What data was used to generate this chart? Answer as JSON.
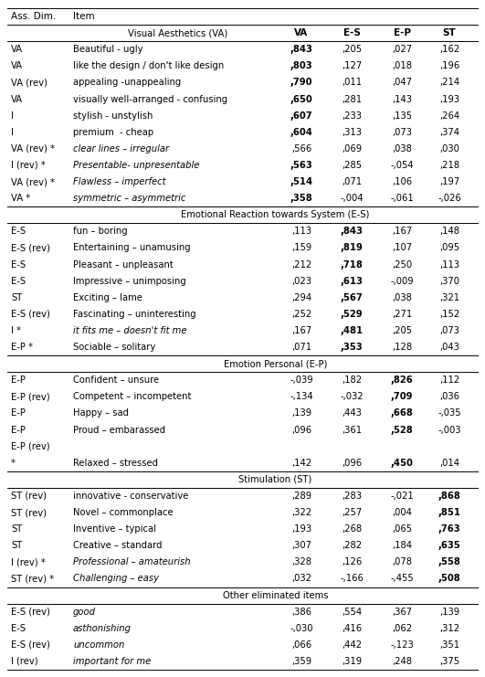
{
  "col_headers_row1": [
    "Ass. Dim.",
    "Item"
  ],
  "col_headers_row2": [
    "",
    "Visual Aesthetics (VA)",
    "VA",
    "E-S",
    "E-P",
    "ST"
  ],
  "sections": [
    {
      "label": "Visual Aesthetics (VA)",
      "show_label_in_header": false,
      "rows": [
        {
          "dim": "VA",
          "item": "Beautiful - ugly",
          "vals": [
            ",843",
            ",205",
            ",027",
            ",162"
          ],
          "bold_col": 0,
          "italic": false
        },
        {
          "dim": "VA",
          "item": "like the design / don't like design",
          "vals": [
            ",803",
            ",127",
            ",018",
            ",196"
          ],
          "bold_col": 0,
          "italic": false
        },
        {
          "dim": "VA (rev)",
          "item": "appealing -unappealing",
          "vals": [
            ",790",
            ",011",
            ",047",
            ",214"
          ],
          "bold_col": 0,
          "italic": false
        },
        {
          "dim": "VA",
          "item": "visually well-arranged - confusing",
          "vals": [
            ",650",
            ",281",
            ",143",
            ",193"
          ],
          "bold_col": 0,
          "italic": false
        },
        {
          "dim": "I",
          "item": "stylish - unstylish",
          "vals": [
            ",607",
            ",233",
            ",135",
            ",264"
          ],
          "bold_col": 0,
          "italic": false
        },
        {
          "dim": "I",
          "item": "premium  - cheap",
          "vals": [
            ",604",
            ",313",
            ",073",
            ",374"
          ],
          "bold_col": 0,
          "italic": false
        },
        {
          "dim": "VA (rev) *",
          "item": "clear lines – irregular",
          "vals": [
            ",566",
            ",069",
            ",038",
            ",030"
          ],
          "bold_col": -1,
          "italic": true
        },
        {
          "dim": "I (rev) *",
          "item": "Presentable- unpresentable",
          "vals": [
            ",563",
            ",285",
            "-,054",
            ",218"
          ],
          "bold_col": 0,
          "italic": true
        },
        {
          "dim": "VA (rev) *",
          "item": "Flawless – imperfect",
          "vals": [
            ",514",
            ",071",
            ",106",
            ",197"
          ],
          "bold_col": 0,
          "italic": true
        },
        {
          "dim": "VA *",
          "item": "symmetric – asymmetric",
          "vals": [
            ",358",
            "-,004",
            "-,061",
            "-,026"
          ],
          "bold_col": 0,
          "italic": true
        }
      ]
    },
    {
      "label": "Emotional Reaction towards System (E-S)",
      "rows": [
        {
          "dim": "E-S",
          "item": "fun – boring",
          "vals": [
            ",113",
            ",843",
            ",167",
            ",148"
          ],
          "bold_col": 1,
          "italic": false
        },
        {
          "dim": "E-S (rev)",
          "item": "Entertaining – unamusing",
          "vals": [
            ",159",
            ",819",
            ",107",
            ",095"
          ],
          "bold_col": 1,
          "italic": false
        },
        {
          "dim": "E-S",
          "item": "Pleasant – unpleasant",
          "vals": [
            ",212",
            ",718",
            ",250",
            ",113"
          ],
          "bold_col": 1,
          "italic": false
        },
        {
          "dim": "E-S",
          "item": "Impressive – unimposing",
          "vals": [
            ",023",
            ",613",
            "-,009",
            ",370"
          ],
          "bold_col": 1,
          "italic": false
        },
        {
          "dim": "ST",
          "item": "Exciting – lame",
          "vals": [
            ",294",
            ",567",
            ",038",
            ",321"
          ],
          "bold_col": 1,
          "italic": false
        },
        {
          "dim": "E-S (rev)",
          "item": "Fascinating – uninteresting",
          "vals": [
            ",252",
            ",529",
            ",271",
            ",152"
          ],
          "bold_col": 1,
          "italic": false
        },
        {
          "dim": "I *",
          "item": "it fits me – doesn't fit me",
          "vals": [
            ",167",
            ",481",
            ",205",
            ",073"
          ],
          "bold_col": 1,
          "italic": true
        },
        {
          "dim": "E-P *",
          "item": "Sociable – solitary",
          "vals": [
            ",071",
            ",353",
            ",128",
            ",043"
          ],
          "bold_col": 1,
          "italic": false
        }
      ]
    },
    {
      "label": "Emotion Personal (E-P)",
      "rows": [
        {
          "dim": "E-P",
          "item": "Confident – unsure",
          "vals": [
            "-,039",
            ",182",
            ",826",
            ",112"
          ],
          "bold_col": 2,
          "italic": false
        },
        {
          "dim": "E-P (rev)",
          "item": "Competent – incompetent",
          "vals": [
            "-,134",
            "-,032",
            ",709",
            ",036"
          ],
          "bold_col": 2,
          "italic": false
        },
        {
          "dim": "E-P",
          "item": "Happy – sad",
          "vals": [
            ",139",
            ",443",
            ",668",
            "-,035"
          ],
          "bold_col": 2,
          "italic": false
        },
        {
          "dim": "E-P",
          "item": "Proud – embarassed",
          "vals": [
            ",096",
            ",361",
            ",528",
            "-,003"
          ],
          "bold_col": 2,
          "italic": false
        },
        {
          "dim": "E-P (rev)",
          "item": "",
          "vals": [
            "",
            "",
            "",
            ""
          ],
          "bold_col": -1,
          "italic": false
        },
        {
          "dim": "*",
          "item": "Relaxed – stressed",
          "vals": [
            ",142",
            ",096",
            ",450",
            ",014"
          ],
          "bold_col": 2,
          "italic": false
        }
      ]
    },
    {
      "label": "Stimulation (ST)",
      "rows": [
        {
          "dim": "ST (rev)",
          "item": "innovative - conservative",
          "vals": [
            ",289",
            ",283",
            "-,021",
            ",868"
          ],
          "bold_col": 3,
          "italic": false
        },
        {
          "dim": "ST (rev)",
          "item": "Novel – commonplace",
          "vals": [
            ",322",
            ",257",
            ",004",
            ",851"
          ],
          "bold_col": 3,
          "italic": false
        },
        {
          "dim": "ST",
          "item": "Inventive – typical",
          "vals": [
            ",193",
            ",268",
            ",065",
            ",763"
          ],
          "bold_col": 3,
          "italic": false
        },
        {
          "dim": "ST",
          "item": "Creative – standard",
          "vals": [
            ",307",
            ",282",
            ",184",
            ",635"
          ],
          "bold_col": 3,
          "italic": false
        },
        {
          "dim": "I (rev) *",
          "item": "Professional – amateurish",
          "vals": [
            ",328",
            ",126",
            ",078",
            ",558"
          ],
          "bold_col": 3,
          "italic": true
        },
        {
          "dim": "ST (rev) *",
          "item": "Challenging – easy",
          "vals": [
            ",032",
            "-,166",
            "-,455",
            ",508"
          ],
          "bold_col": 3,
          "italic": true
        }
      ]
    },
    {
      "label": "Other eliminated items",
      "rows": [
        {
          "dim": "E-S (rev)",
          "item": "good",
          "vals": [
            ",386",
            ",554",
            ",367",
            ",139"
          ],
          "bold_col": -1,
          "italic": true
        },
        {
          "dim": "E-S",
          "item": "asthonishing",
          "vals": [
            "-,030",
            ",416",
            ",062",
            ",312"
          ],
          "bold_col": -1,
          "italic": true
        },
        {
          "dim": "E-S (rev)",
          "item": "uncommon",
          "vals": [
            ",066",
            ",442",
            "-,123",
            ",351"
          ],
          "bold_col": -1,
          "italic": true
        },
        {
          "dim": "I (rev)",
          "item": "important for me",
          "vals": [
            ",359",
            ",319",
            ",248",
            ",375"
          ],
          "bold_col": -1,
          "italic": true
        }
      ]
    }
  ],
  "bg_color": "#ffffff",
  "fs": 7.2,
  "hfs": 7.5
}
